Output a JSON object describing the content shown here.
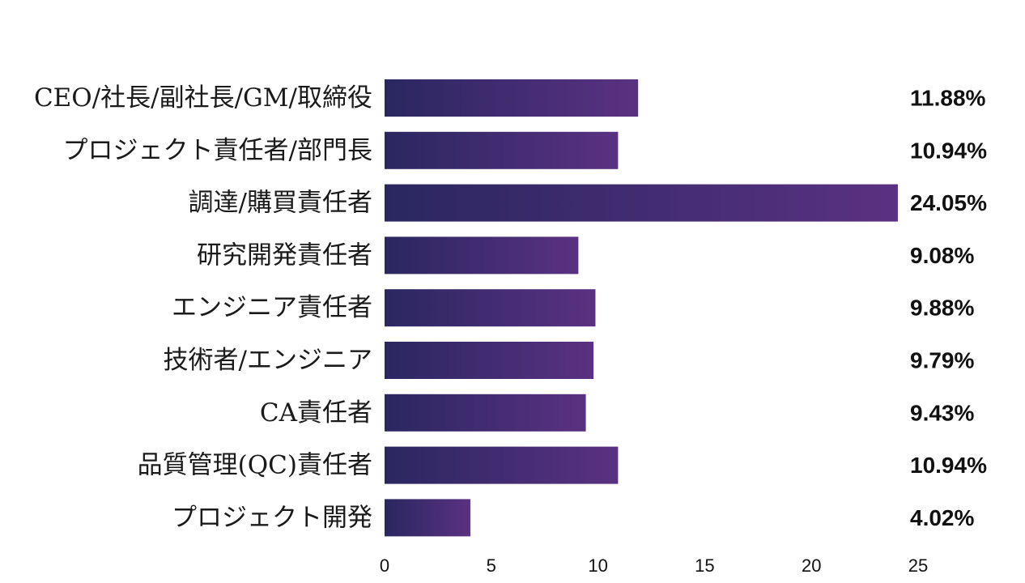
{
  "chart_data": {
    "type": "bar",
    "orientation": "horizontal",
    "categories": [
      "CEO/社長/副社長/GM/取締役",
      "プロジェクト責任者/部門長",
      "調達/購買責任者",
      "研究開発責任者",
      "エンジニア責任者",
      "技術者/エンジニア",
      "CA責任者",
      "品質管理(QC)責任者",
      "プロジェクト開発"
    ],
    "values": [
      11.88,
      10.94,
      24.05,
      9.08,
      9.88,
      9.79,
      9.43,
      10.94,
      4.02
    ],
    "value_labels": [
      "11.88%",
      "10.94%",
      "24.05%",
      "9.08%",
      "9.88%",
      "9.79%",
      "9.43%",
      "10.94%",
      "4.02%"
    ],
    "xlim": [
      0,
      25
    ],
    "xticks": [
      "0",
      "5",
      "10",
      "15",
      "20",
      "25"
    ],
    "title": "",
    "xlabel": "",
    "ylabel": "",
    "grid": false,
    "legend": "none",
    "colors": {
      "bar_start": "#2a2760",
      "bar_end": "#5a3182",
      "text": "#111111"
    }
  }
}
